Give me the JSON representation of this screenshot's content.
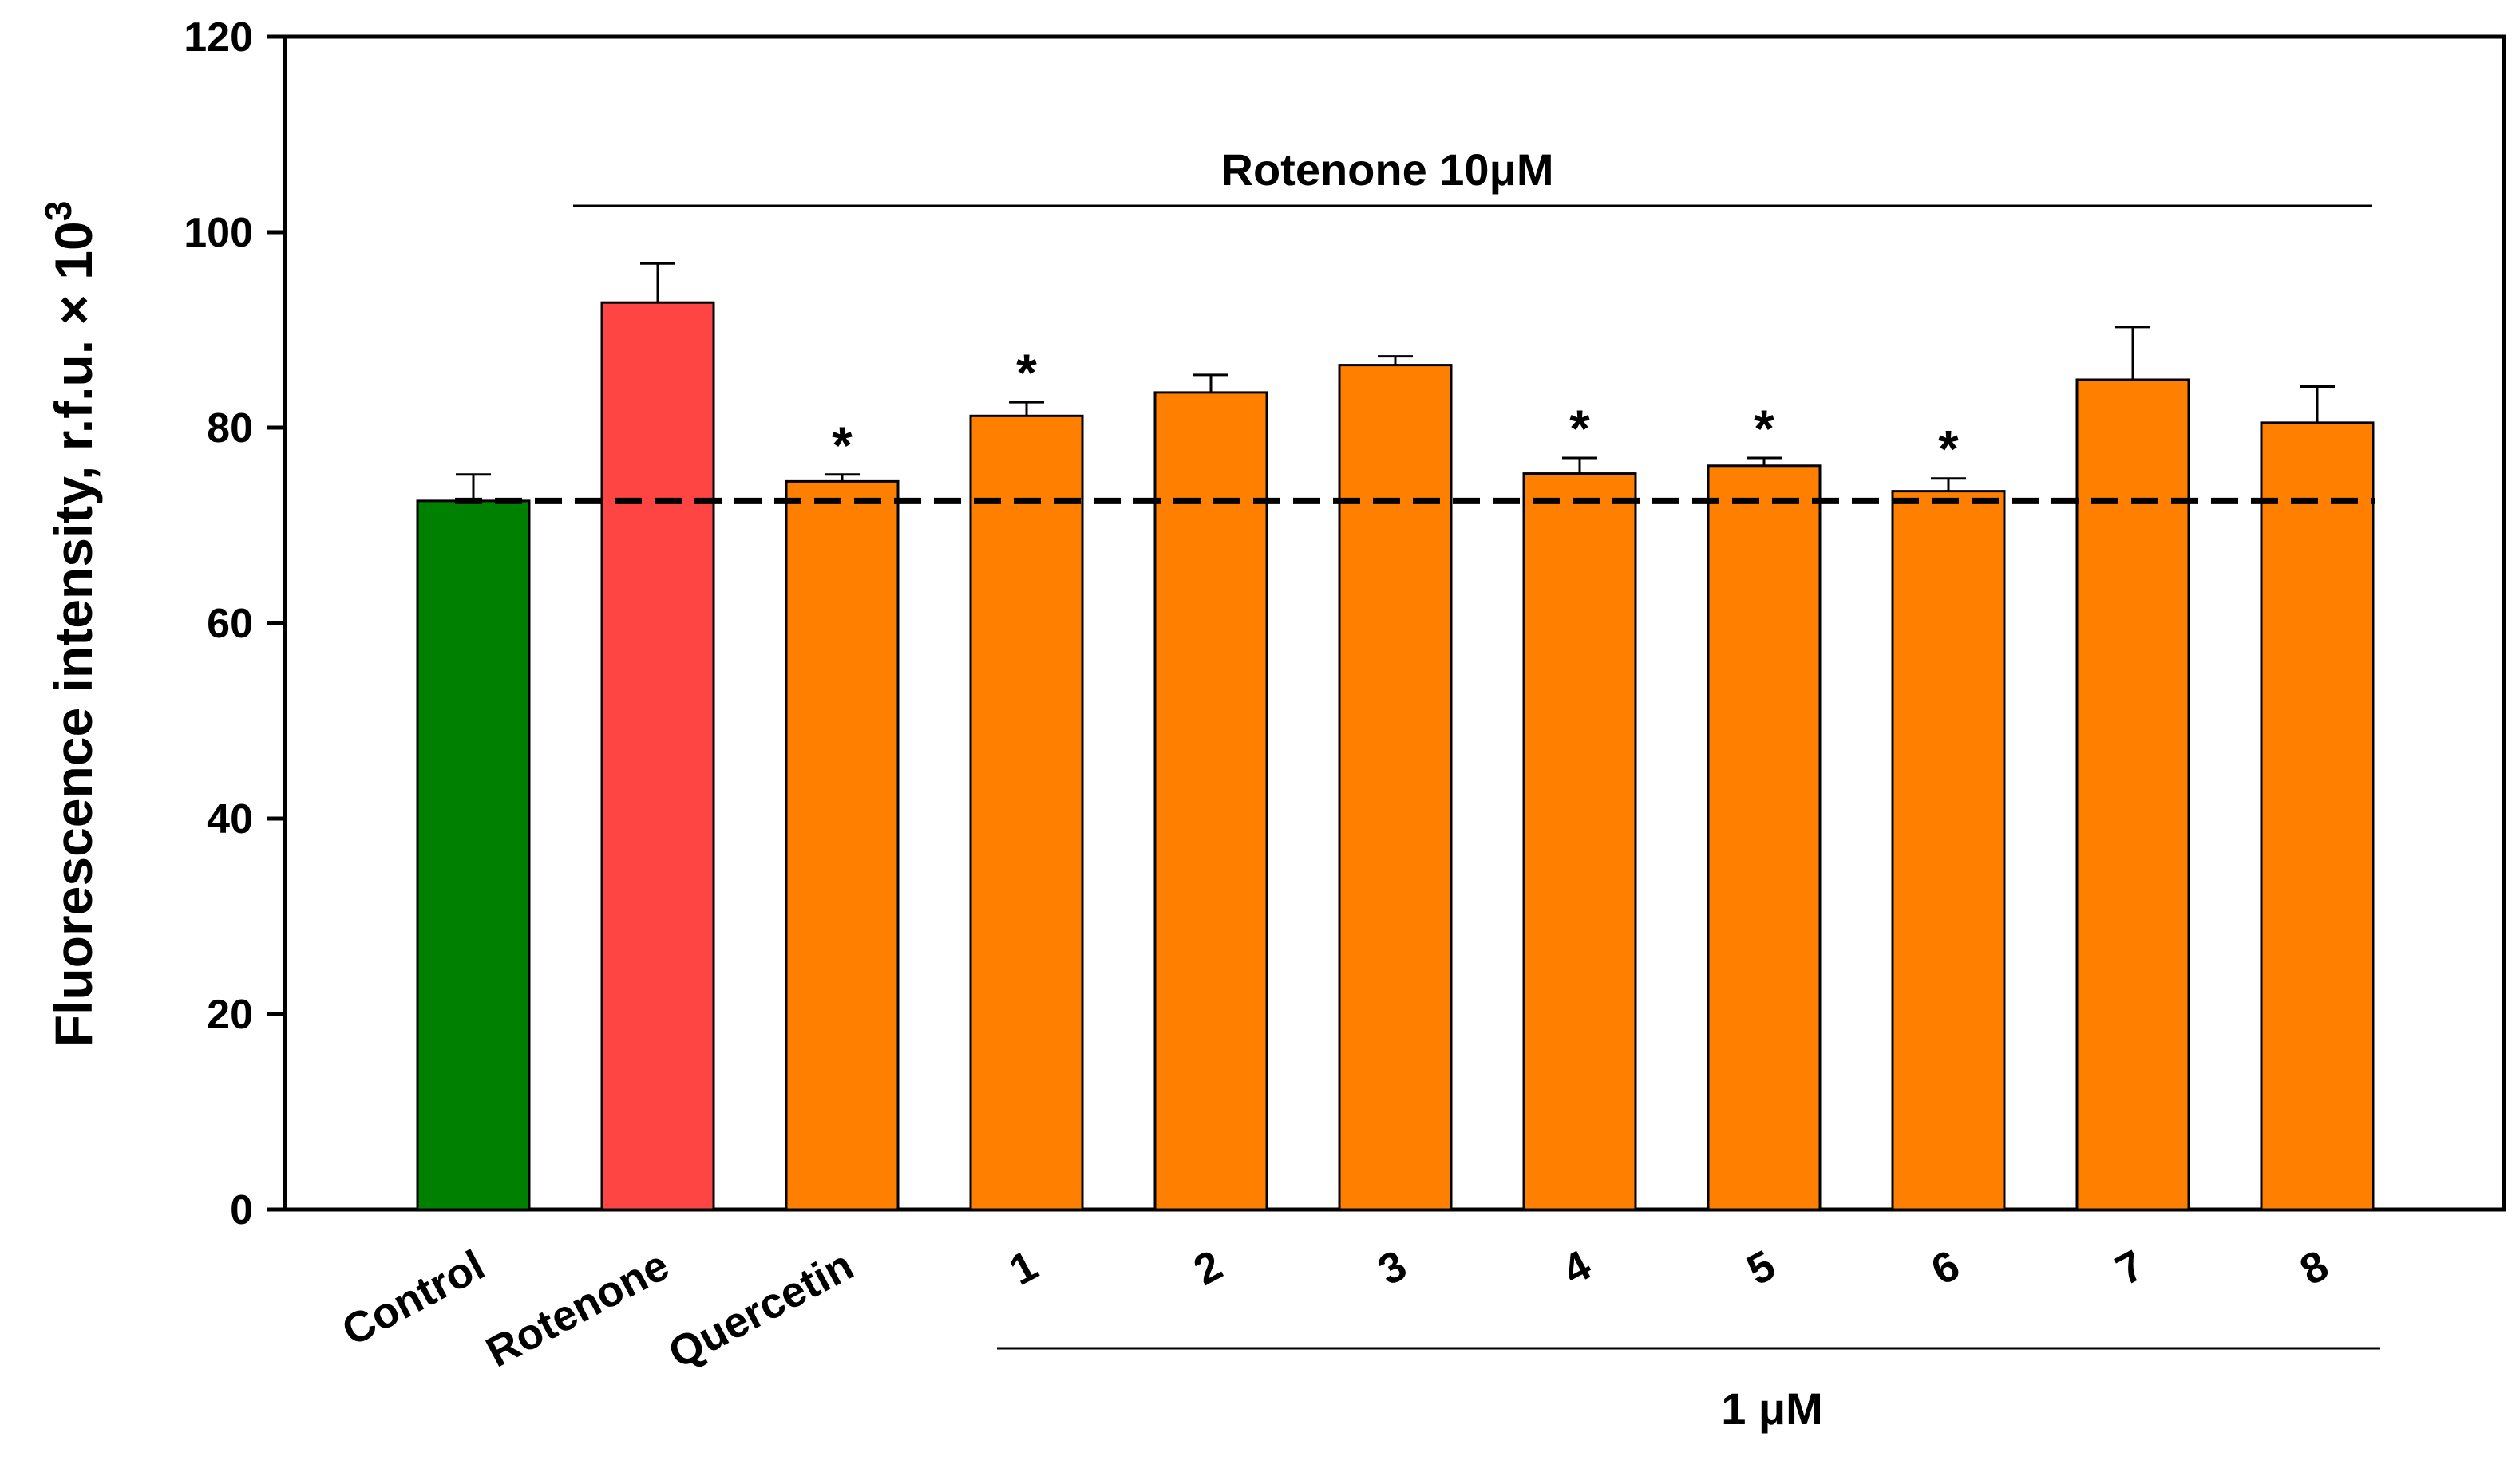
{
  "chart_data": {
    "type": "bar",
    "title": "",
    "xlabel": "",
    "ylabel": "Fluorescence intensity, r.f.u. × 10",
    "ylabel_superscript": "3",
    "ylim": [
      0,
      120
    ],
    "yticks": [
      0,
      20,
      40,
      60,
      80,
      100,
      120
    ],
    "ytick_labels": [
      "0",
      "20",
      "40",
      "60",
      "80",
      "100",
      "120"
    ],
    "grid": false,
    "categories": [
      "Control",
      "Rotenone",
      "Quercetin",
      "1",
      "2",
      "3",
      "4",
      "5",
      "6",
      "7",
      "8"
    ],
    "values": [
      72.5,
      92.8,
      74.5,
      81.2,
      83.6,
      86.4,
      75.3,
      76.1,
      73.5,
      84.9,
      80.5
    ],
    "errors": [
      2.7,
      4.0,
      0.7,
      1.4,
      1.8,
      0.9,
      1.6,
      0.8,
      1.3,
      5.4,
      3.7
    ],
    "significant": [
      false,
      false,
      true,
      true,
      false,
      false,
      true,
      true,
      true,
      false,
      false
    ],
    "significance_marker": "*",
    "colors": [
      "#008000",
      "#ff4444",
      "#ff8000",
      "#ff8000",
      "#ff8000",
      "#ff8000",
      "#ff8000",
      "#ff8000",
      "#ff8000",
      "#ff8000",
      "#ff8000"
    ],
    "reference_line": {
      "value": 72.5,
      "style": "dashed",
      "color": "#000000"
    },
    "annotations": {
      "top_bracket_label": "Rotenone 10μM",
      "bottom_bracket_label": "1 μM"
    }
  }
}
